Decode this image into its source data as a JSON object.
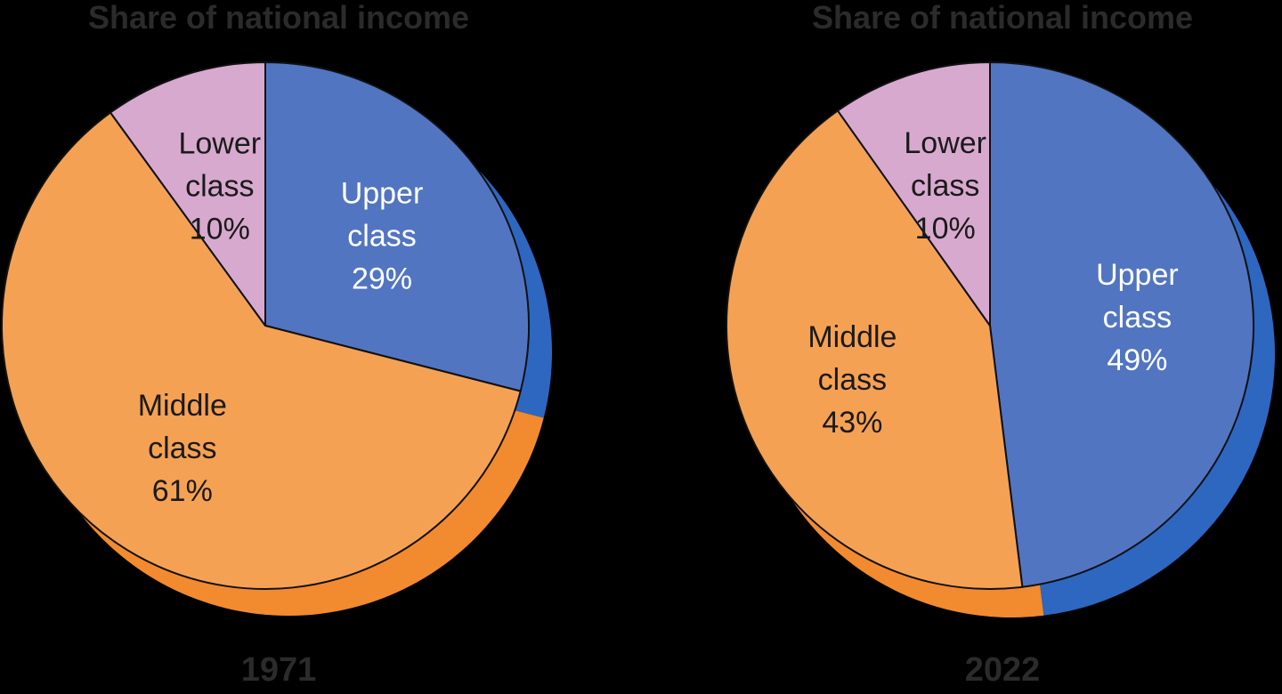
{
  "chart_data": [
    {
      "type": "pie",
      "title": "Share of national income",
      "year_label": "1971",
      "slices": [
        {
          "name": "Upper class",
          "line1": "Upper",
          "line2": "class",
          "value": 29,
          "value_label": "29%",
          "color": "#5275c2",
          "depth_color": "#2e67c0",
          "text_color": "#ffffff"
        },
        {
          "name": "Middle class",
          "line1": "Middle",
          "line2": "class",
          "value": 61,
          "value_label": "61%",
          "color": "#f5a154",
          "depth_color": "#f28a30",
          "text_color": "#1a1a1a"
        },
        {
          "name": "Lower class",
          "line1": "Lower",
          "line2": "class",
          "value": 10,
          "value_label": "10%",
          "color": "#d8a9cf",
          "depth_color": "#c98fbf",
          "text_color": "#1a1a1a"
        }
      ]
    },
    {
      "type": "pie",
      "title": "Share of national income",
      "year_label": "2022",
      "slices": [
        {
          "name": "Upper class",
          "line1": "Upper",
          "line2": "class",
          "value": 49,
          "value_label": "49%",
          "color": "#5275c2",
          "depth_color": "#2e67c0",
          "text_color": "#ffffff"
        },
        {
          "name": "Middle class",
          "line1": "Middle",
          "line2": "class",
          "value": 43,
          "value_label": "43%",
          "color": "#f5a154",
          "depth_color": "#f28a30",
          "text_color": "#1a1a1a"
        },
        {
          "name": "Lower class",
          "line1": "Lower",
          "line2": "class",
          "value": 10,
          "value_label": "10%",
          "color": "#d8a9cf",
          "depth_color": "#c98fbf",
          "text_color": "#1a1a1a"
        }
      ]
    }
  ]
}
